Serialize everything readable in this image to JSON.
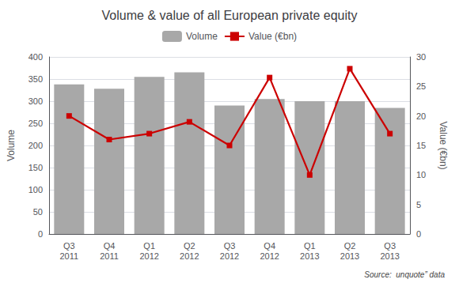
{
  "chart_data": {
    "type": "bar",
    "title": "Volume & value of all European private equity",
    "categories": [
      "Q3\n2011",
      "Q4\n2011",
      "Q1\n2012",
      "Q2\n2012",
      "Q3\n2012",
      "Q4\n2012",
      "Q1\n2013",
      "Q2\n2013",
      "Q3\n2013"
    ],
    "series": [
      {
        "name": "Volume",
        "type": "bar",
        "color": "#a8a8a8",
        "values": [
          338,
          328,
          355,
          365,
          290,
          305,
          300,
          300,
          285
        ]
      },
      {
        "name": "Value (€bn)",
        "type": "line",
        "axis": "y2",
        "color": "#cc0000",
        "marker": "square",
        "values": [
          20.0,
          16.0,
          17.0,
          19.0,
          15.0,
          26.5,
          10.0,
          28.0,
          17.0
        ]
      }
    ],
    "ylabel": "Volume",
    "y2label": "Value (€bn)",
    "ylim": [
      0,
      400
    ],
    "yticks": [
      0,
      50,
      100,
      150,
      200,
      250,
      300,
      350,
      400
    ],
    "y2lim": [
      0,
      30
    ],
    "y2ticks": [
      0,
      5,
      10,
      15,
      20,
      25,
      30
    ],
    "grid": true,
    "legend": "top",
    "annotations": [
      "Source:  unquote” data"
    ]
  }
}
